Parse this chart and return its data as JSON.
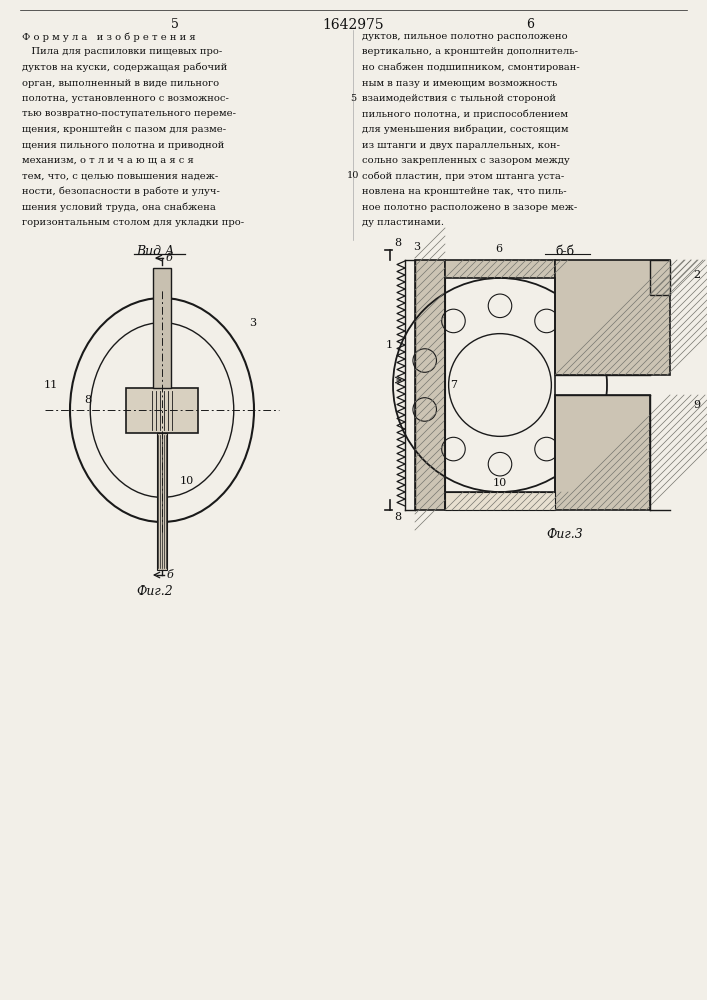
{
  "bg_color": "#f2efe8",
  "text_color": "#111111",
  "title": "1642975",
  "col_left_num": "5",
  "col_right_num": "6",
  "left_text": [
    "Ф о р м у л а   и з о б р е т е н и я",
    "   Пила для распиловки пищевых про-",
    "дуктов на куски, содержащая рабочий",
    "орган, выполненный в виде пильного",
    "полотна, установленного с возможнос-",
    "тью возвратно-поступательного переме-",
    "щения, кронштейн с пазом для разме-",
    "щения пильного полотна и приводной",
    "механизм, о т л и ч а ю щ а я с я",
    "тем, что, с целью повышения надеж-",
    "ности, безопасности в работе и улуч-",
    "шения условий труда, она снабжена",
    "горизонтальным столом для укладки про-"
  ],
  "right_text": [
    "дуктов, пильное полотно расположено",
    "вертикально, а кронштейн дополнитель-",
    "но снабжен подшипником, смонтирован-",
    "ным в пазу и имеющим возможность",
    "взаимодействия с тыльной стороной",
    "пильного полотна, и приспособлением",
    "для уменьшения вибрации, состоящим",
    "из штанги и двух параллельных, кон-",
    "сольно закрепленных с зазором между",
    "собой пластин, при этом штанга уста-",
    "новлена на кронштейне так, что пиль-",
    "ное полотно расположено в зазоре меж-",
    "ду пластинами."
  ]
}
